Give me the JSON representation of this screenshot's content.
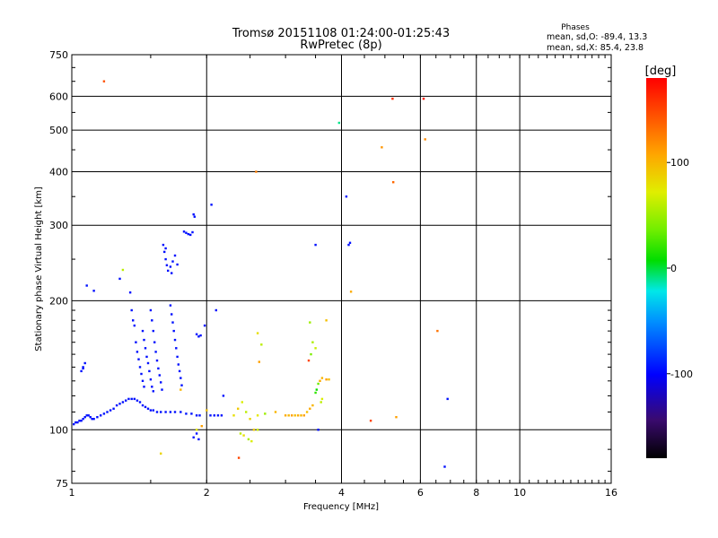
{
  "chart_data": {
    "type": "scatter",
    "title": "Tromsø 20151108 01:24:00-01:25:43",
    "subtitle": "RwPretec (8p)",
    "xlabel": "Frequency [MHz]",
    "ylabel": "Stationary phase Virtual Height [km]",
    "x_scale": "log",
    "y_scale": "log",
    "xlim": [
      1,
      16
    ],
    "ylim": [
      75,
      750
    ],
    "x_ticks": [
      1,
      2,
      4,
      6,
      8,
      10,
      16
    ],
    "y_ticks": [
      75,
      100,
      200,
      300,
      400,
      500,
      600,
      750
    ],
    "grid": true,
    "stats": {
      "heading": "Phases",
      "line_o": "mean, sd,O: -89.4, 13.3",
      "line_x": "mean, sd,X:  85.4, 23.8"
    },
    "colorbar": {
      "label": "[deg]",
      "range": [
        -180,
        180
      ],
      "ticks": [
        100,
        0,
        -100
      ]
    },
    "series": [
      {
        "points": [
          [
            1.01,
            103,
            -95
          ],
          [
            1.02,
            104,
            -95
          ],
          [
            1.03,
            104,
            -96
          ],
          [
            1.04,
            105,
            -96
          ],
          [
            1.05,
            105,
            -95
          ],
          [
            1.06,
            106,
            -96
          ],
          [
            1.07,
            107,
            -96
          ],
          [
            1.08,
            108,
            -94
          ],
          [
            1.09,
            108,
            -95
          ],
          [
            1.1,
            107,
            -96
          ],
          [
            1.11,
            106,
            -95
          ],
          [
            1.12,
            106,
            -95
          ],
          [
            1.14,
            107,
            -96
          ],
          [
            1.16,
            108,
            -96
          ],
          [
            1.18,
            109,
            -94
          ],
          [
            1.2,
            110,
            -95
          ],
          [
            1.22,
            111,
            -96
          ],
          [
            1.24,
            112,
            -95
          ],
          [
            1.26,
            114,
            -96
          ],
          [
            1.28,
            115,
            -95
          ],
          [
            1.3,
            116,
            -96
          ],
          [
            1.32,
            117,
            -95
          ],
          [
            1.34,
            118,
            -96
          ],
          [
            1.36,
            118,
            -95
          ],
          [
            1.38,
            118,
            -96
          ],
          [
            1.4,
            117,
            -95
          ],
          [
            1.42,
            116,
            -95
          ],
          [
            1.44,
            114,
            -94
          ],
          [
            1.46,
            113,
            -96
          ],
          [
            1.48,
            112,
            -95
          ],
          [
            1.5,
            111,
            -96
          ],
          [
            1.52,
            111,
            -95
          ],
          [
            1.55,
            110,
            -96
          ],
          [
            1.58,
            110,
            -95
          ],
          [
            1.62,
            110,
            -96
          ],
          [
            1.66,
            110,
            -95
          ],
          [
            1.7,
            110,
            -96
          ],
          [
            1.75,
            110,
            -95
          ],
          [
            1.8,
            109,
            -94
          ],
          [
            1.85,
            109,
            -95
          ],
          [
            1.9,
            108,
            -96
          ],
          [
            1.93,
            108,
            -95
          ],
          [
            2.04,
            108,
            -95
          ],
          [
            2.08,
            108,
            -96
          ],
          [
            2.12,
            108,
            -95
          ],
          [
            2.16,
            108,
            -96
          ],
          [
            1.05,
            137,
            -95
          ],
          [
            1.06,
            140,
            -95
          ],
          [
            1.07,
            143,
            -96
          ],
          [
            1.06,
            139,
            -96
          ],
          [
            1.08,
            217,
            -95
          ],
          [
            1.12,
            211,
            -96
          ],
          [
            1.28,
            225,
            -95
          ],
          [
            1.35,
            209,
            -96
          ],
          [
            1.36,
            190,
            -95
          ],
          [
            1.37,
            180,
            -96
          ],
          [
            1.38,
            175,
            -95
          ],
          [
            1.39,
            160,
            -96
          ],
          [
            1.4,
            152,
            -95
          ],
          [
            1.41,
            146,
            -96
          ],
          [
            1.42,
            140,
            -95
          ],
          [
            1.43,
            135,
            -96
          ],
          [
            1.44,
            130,
            -95
          ],
          [
            1.45,
            126,
            -96
          ],
          [
            1.44,
            170,
            -95
          ],
          [
            1.45,
            162,
            -96
          ],
          [
            1.46,
            155,
            -95
          ],
          [
            1.47,
            148,
            -96
          ],
          [
            1.48,
            143,
            -95
          ],
          [
            1.49,
            137,
            -96
          ],
          [
            1.5,
            131,
            -95
          ],
          [
            1.51,
            126,
            -96
          ],
          [
            1.52,
            123,
            -95
          ],
          [
            1.5,
            190,
            -95
          ],
          [
            1.51,
            180,
            -96
          ],
          [
            1.52,
            170,
            -95
          ],
          [
            1.53,
            160,
            -96
          ],
          [
            1.54,
            152,
            -95
          ],
          [
            1.55,
            145,
            -96
          ],
          [
            1.56,
            139,
            -95
          ],
          [
            1.57,
            134,
            -96
          ],
          [
            1.58,
            129,
            -95
          ],
          [
            1.59,
            124,
            -96
          ],
          [
            1.6,
            270,
            -95
          ],
          [
            1.61,
            260,
            -96
          ],
          [
            1.62,
            250,
            -95
          ],
          [
            1.63,
            242,
            -96
          ],
          [
            1.64,
            235,
            -95
          ],
          [
            1.62,
            265,
            -96
          ],
          [
            1.66,
            240,
            -95
          ],
          [
            1.67,
            232,
            -96
          ],
          [
            1.68,
            247,
            -95
          ],
          [
            1.7,
            255,
            -96
          ],
          [
            1.72,
            243,
            -95
          ],
          [
            1.66,
            195,
            -95
          ],
          [
            1.67,
            186,
            -96
          ],
          [
            1.68,
            178,
            -95
          ],
          [
            1.69,
            170,
            -96
          ],
          [
            1.7,
            162,
            -95
          ],
          [
            1.71,
            155,
            -96
          ],
          [
            1.72,
            148,
            -95
          ],
          [
            1.73,
            142,
            -96
          ],
          [
            1.74,
            137,
            -95
          ],
          [
            1.75,
            132,
            -96
          ],
          [
            1.76,
            127,
            -95
          ],
          [
            1.78,
            290,
            -95
          ],
          [
            1.8,
            288,
            -96
          ],
          [
            1.82,
            286,
            -95
          ],
          [
            1.84,
            285,
            -96
          ],
          [
            1.86,
            289,
            -95
          ],
          [
            1.87,
            318,
            -96
          ],
          [
            1.88,
            314,
            -95
          ],
          [
            1.9,
            167,
            -95
          ],
          [
            1.92,
            165,
            -96
          ],
          [
            1.94,
            166,
            -95
          ],
          [
            1.98,
            175,
            -96
          ],
          [
            2.05,
            335,
            -95
          ],
          [
            2.1,
            190,
            -96
          ],
          [
            2.18,
            120,
            -95
          ],
          [
            1.87,
            96,
            -95
          ],
          [
            1.9,
            98,
            -96
          ],
          [
            1.92,
            95,
            -95
          ],
          [
            3.5,
            270,
            -95
          ],
          [
            3.55,
            100,
            -96
          ],
          [
            4.1,
            350,
            -95
          ],
          [
            4.15,
            270,
            -96
          ],
          [
            4.18,
            273,
            -96
          ],
          [
            6.9,
            118,
            -95
          ],
          [
            6.8,
            82,
            -96
          ]
        ]
      },
      {
        "points": [
          [
            1.18,
            650,
            145
          ],
          [
            1.3,
            236,
            60
          ],
          [
            1.58,
            88,
            85
          ],
          [
            1.75,
            124,
            100
          ],
          [
            1.9,
            100,
            75
          ],
          [
            1.95,
            102,
            110
          ],
          [
            2.0,
            111,
            95
          ],
          [
            2.3,
            108,
            80
          ],
          [
            2.35,
            112,
            90
          ],
          [
            2.4,
            116,
            70
          ],
          [
            2.45,
            110,
            60
          ],
          [
            2.5,
            106,
            85
          ],
          [
            2.6,
            108,
            75
          ],
          [
            2.7,
            109,
            50
          ],
          [
            2.38,
            98,
            60
          ],
          [
            2.42,
            97,
            80
          ],
          [
            2.48,
            95,
            55
          ],
          [
            2.52,
            94,
            70
          ],
          [
            2.55,
            100,
            90
          ],
          [
            2.6,
            100,
            65
          ],
          [
            2.36,
            86,
            150
          ],
          [
            2.58,
            400,
            125
          ],
          [
            2.6,
            168,
            80
          ],
          [
            2.65,
            158,
            60
          ],
          [
            2.62,
            144,
            110
          ],
          [
            2.85,
            110,
            100
          ],
          [
            3.0,
            108,
            105
          ],
          [
            3.05,
            108,
            100
          ],
          [
            3.1,
            108,
            110
          ],
          [
            3.15,
            108,
            95
          ],
          [
            3.2,
            108,
            105
          ],
          [
            3.25,
            108,
            100
          ],
          [
            3.3,
            108,
            110
          ],
          [
            3.35,
            110,
            95
          ],
          [
            3.4,
            112,
            105
          ],
          [
            3.45,
            114,
            100
          ],
          [
            3.6,
            116,
            60
          ],
          [
            3.62,
            118,
            70
          ],
          [
            3.5,
            122,
            20
          ],
          [
            3.52,
            124,
            10
          ],
          [
            3.55,
            128,
            35
          ],
          [
            3.58,
            130,
            105
          ],
          [
            3.62,
            132,
            100
          ],
          [
            3.7,
            131,
            110
          ],
          [
            3.75,
            131,
            95
          ],
          [
            3.4,
            178,
            50
          ],
          [
            3.45,
            160,
            55
          ],
          [
            3.5,
            155,
            65
          ],
          [
            3.42,
            150,
            40
          ],
          [
            3.38,
            145,
            150
          ],
          [
            3.7,
            180,
            95
          ],
          [
            3.95,
            520,
            -10
          ],
          [
            4.2,
            210,
            105
          ],
          [
            4.65,
            105,
            150
          ],
          [
            4.92,
            456,
            115
          ],
          [
            5.2,
            592,
            160
          ],
          [
            5.22,
            378,
            135
          ],
          [
            6.1,
            592,
            170
          ],
          [
            6.15,
            476,
            120
          ],
          [
            6.55,
            170,
            130
          ],
          [
            5.3,
            107,
            110
          ]
        ]
      }
    ]
  }
}
